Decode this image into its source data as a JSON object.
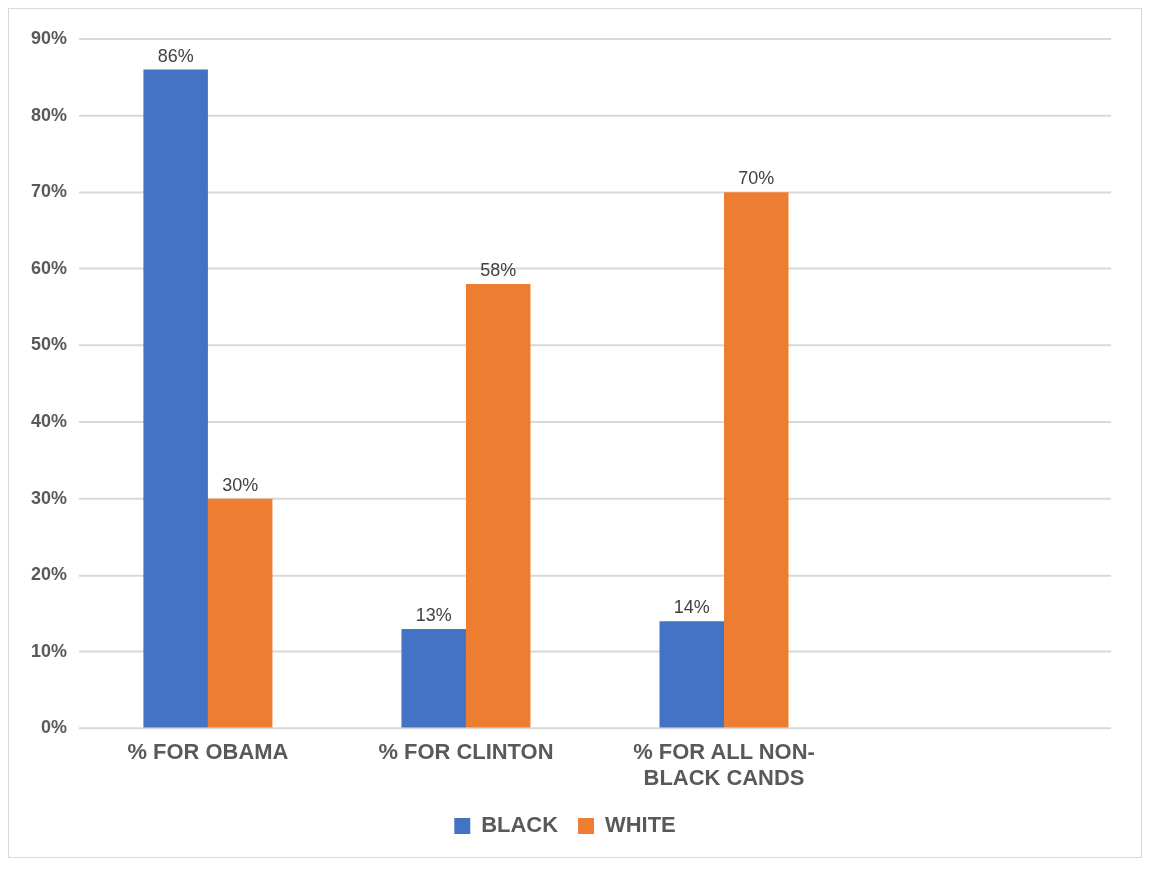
{
  "chart_data": {
    "type": "bar",
    "categories": [
      "% FOR OBAMA",
      "% FOR CLINTON",
      "% FOR ALL NON-BLACK CANDS",
      null
    ],
    "series": [
      {
        "name": "BLACK",
        "color": "#4472c4",
        "values": [
          86,
          13,
          14,
          null
        ],
        "value_labels": [
          "86%",
          "13%",
          "14%",
          null
        ]
      },
      {
        "name": "WHITE",
        "color": "#ed7d31",
        "values": [
          30,
          58,
          70,
          null
        ],
        "value_labels": [
          "30%",
          "58%",
          "70%",
          null
        ]
      }
    ],
    "ylim": [
      0,
      90
    ],
    "yticks": [
      {
        "value": 0,
        "label": "0%"
      },
      {
        "value": 10,
        "label": "10%"
      },
      {
        "value": 20,
        "label": "20%"
      },
      {
        "value": 30,
        "label": "30%"
      },
      {
        "value": 40,
        "label": "40%"
      },
      {
        "value": 50,
        "label": "50%"
      },
      {
        "value": 60,
        "label": "60%"
      },
      {
        "value": 70,
        "label": "70%"
      },
      {
        "value": 80,
        "label": "80%"
      },
      {
        "value": 90,
        "label": "90%"
      }
    ],
    "grid": "y",
    "legend": "bottom"
  }
}
